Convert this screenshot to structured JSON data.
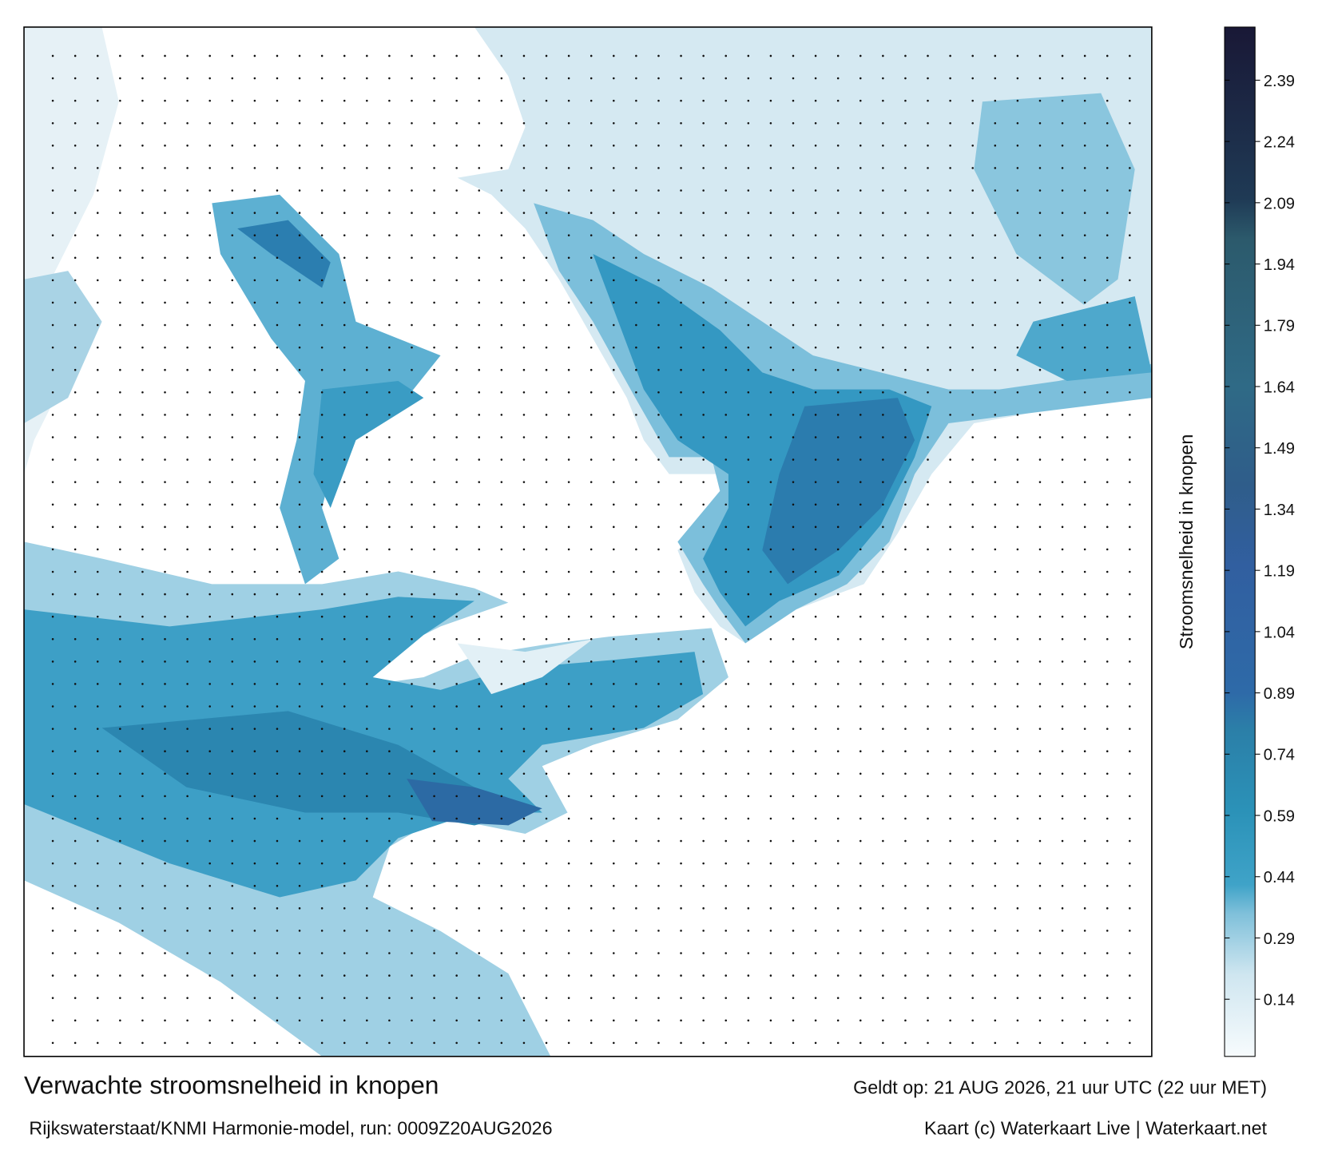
{
  "header": {
    "title": "Verwachte stroomsnelheid in knopen",
    "subtitle": "Rijkswaterstaat/KNMI Harmonie-model, run: 0009Z20AUG2026",
    "valid": "Geldt op: 21 AUG 2026, 21 uur UTC (22 uur MET)",
    "credit": "Kaart (c) Waterkaart Live | Waterkaart.net"
  },
  "colorbar": {
    "label": "Stroomsnelheid in knopen",
    "lim": [
      0,
      2.52
    ],
    "ticks": [
      0.14,
      0.29,
      0.44,
      0.59,
      0.74,
      0.89,
      1.04,
      1.19,
      1.34,
      1.49,
      1.64,
      1.79,
      1.94,
      2.09,
      2.24,
      2.39
    ],
    "stops": [
      {
        "value": 0,
        "color": "#f7fbfd"
      },
      {
        "value": 0.2,
        "color": "#cfe6f0"
      },
      {
        "value": 0.35,
        "color": "#7fc0da"
      },
      {
        "value": 0.42,
        "color": "#3fa3c8"
      },
      {
        "value": 0.6,
        "color": "#2b92b8"
      },
      {
        "value": 0.8,
        "color": "#2b7fa8"
      },
      {
        "value": 0.89,
        "color": "#2e6aa8"
      },
      {
        "value": 1.2,
        "color": "#315fa0"
      },
      {
        "value": 1.4,
        "color": "#2f5d8a"
      },
      {
        "value": 1.64,
        "color": "#2f6a86"
      },
      {
        "value": 2.0,
        "color": "#2c5a6c"
      },
      {
        "value": 2.1,
        "color": "#1f3a55"
      },
      {
        "value": 2.52,
        "color": "#191836"
      }
    ]
  }
}
